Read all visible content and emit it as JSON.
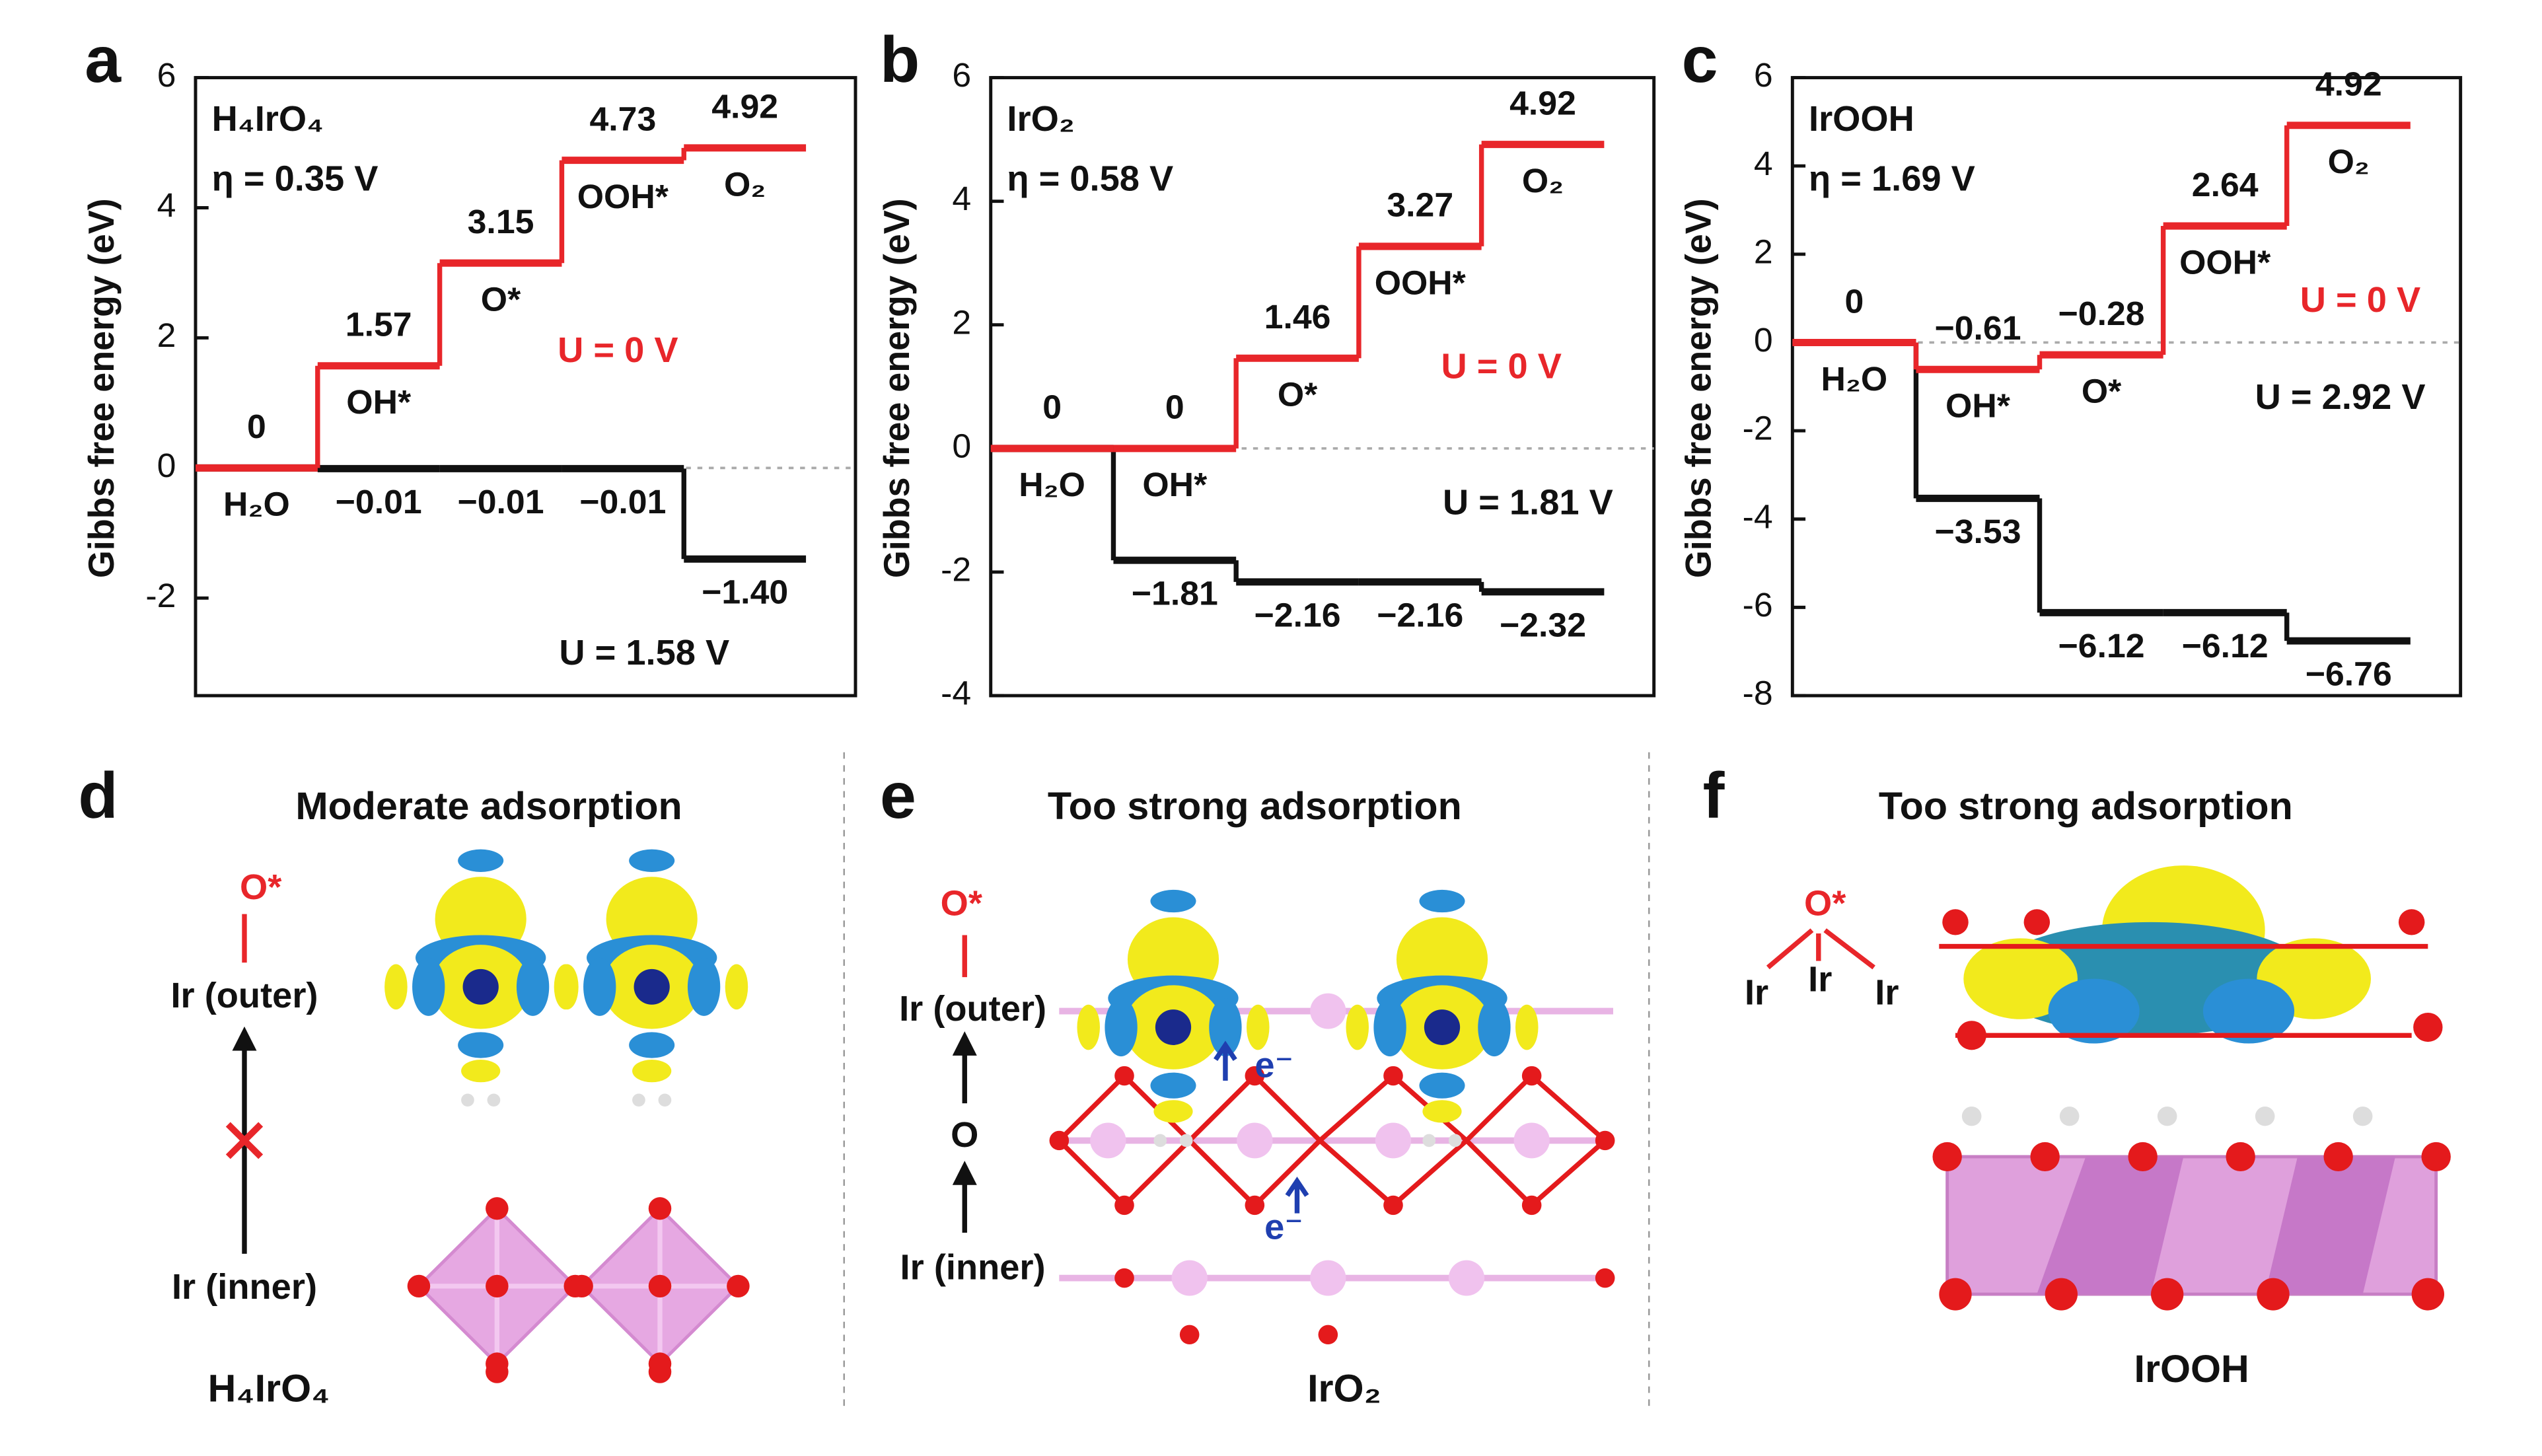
{
  "chart_data": [
    {
      "type": "step",
      "label": "a",
      "ylabel": "Gibbs free energy (eV)",
      "system": "H₄IrO₄",
      "overpotential": "η = 0.35 V",
      "categories": [
        "H₂O",
        "OH*",
        "O*",
        "OOH*",
        "O₂"
      ],
      "ylim": [
        -3.5,
        6
      ],
      "yticks": [
        -2,
        0,
        2,
        4,
        6
      ],
      "series": [
        {
          "name": "U = 0 V",
          "color": "#e8262a",
          "values": [
            0,
            1.57,
            3.15,
            4.73,
            4.92
          ]
        },
        {
          "name": "U = 1.58 V",
          "color": "#111111",
          "values": [
            0,
            -0.01,
            -0.01,
            -0.01,
            -1.4
          ],
          "value_labels": [
            null,
            "−0.01",
            "−0.01",
            "−0.01",
            "−1.40"
          ]
        }
      ]
    },
    {
      "type": "step",
      "label": "b",
      "ylabel": "Gibbs free energy (eV)",
      "system": "IrO₂",
      "overpotential": "η = 0.58 V",
      "categories": [
        "H₂O",
        "OH*",
        "O*",
        "OOH*",
        "O₂"
      ],
      "ylim": [
        -4,
        6
      ],
      "yticks": [
        -4,
        -2,
        0,
        2,
        4,
        6
      ],
      "series": [
        {
          "name": "U = 0 V",
          "color": "#e8262a",
          "values": [
            0,
            0,
            1.46,
            3.27,
            4.92
          ]
        },
        {
          "name": "U = 1.81 V",
          "color": "#111111",
          "values": [
            0,
            -1.81,
            -2.16,
            -2.16,
            -2.32
          ],
          "value_labels": [
            null,
            "−1.81",
            "−2.16",
            "−2.16",
            "−2.32"
          ]
        }
      ]
    },
    {
      "type": "step",
      "label": "c",
      "ylabel": "Gibbs free energy (eV)",
      "system": "IrOOH",
      "overpotential": "η = 1.69 V",
      "categories": [
        "H₂O",
        "OH*",
        "O*",
        "OOH*",
        "O₂"
      ],
      "ylim": [
        -8,
        6
      ],
      "yticks": [
        -8,
        -6,
        -4,
        -2,
        0,
        2,
        4,
        6
      ],
      "series": [
        {
          "name": "U = 0 V",
          "color": "#e8262a",
          "values": [
            0,
            -0.61,
            -0.28,
            2.64,
            4.92
          ],
          "value_labels": [
            "0",
            "−0.61",
            "−0.28",
            "2.64",
            "4.92"
          ]
        },
        {
          "name": "U = 2.92 V",
          "color": "#111111",
          "values": [
            0,
            -3.53,
            -6.12,
            -6.12,
            -6.76
          ],
          "value_labels": [
            null,
            "−3.53",
            "−6.12",
            "−6.12",
            "−6.76"
          ]
        }
      ]
    }
  ],
  "diagrams": [
    {
      "label": "d",
      "title": "Moderate adsorption",
      "texts": [
        "O*",
        "Ir (outer)",
        "Ir (inner)"
      ],
      "formula": "H₄IrO₄"
    },
    {
      "label": "e",
      "title": "Too strong adsorption",
      "texts": [
        "O*",
        "Ir (outer)",
        "O",
        "Ir (inner)"
      ],
      "electrons": [
        "e⁻",
        "e⁻"
      ],
      "formula": "IrO₂"
    },
    {
      "label": "f",
      "title": "Too strong adsorption",
      "texts": [
        "O*",
        "Ir",
        "Ir",
        "Ir"
      ],
      "formula": "IrOOH"
    }
  ]
}
